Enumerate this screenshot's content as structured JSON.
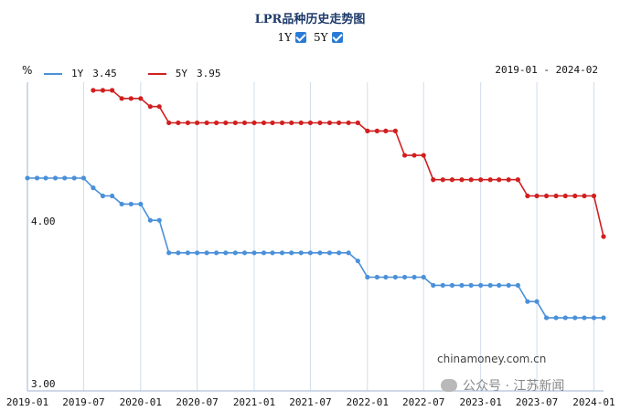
{
  "header": {
    "title": "LPR品种历史走势图",
    "toggles": [
      {
        "label": "1Y",
        "checked": true
      },
      {
        "label": "5Y",
        "checked": true
      }
    ]
  },
  "legend": {
    "unit": "%",
    "range_text": "2019-01 - 2024-02",
    "items": [
      {
        "name": "1Y",
        "value": "3.45",
        "color": "#4a90d9"
      },
      {
        "name": "5Y",
        "value": "3.95",
        "color": "#d11f1f"
      }
    ]
  },
  "watermarks": {
    "site": "chinamoney.com.cn",
    "account": "公众号 · 江苏新闻"
  },
  "chart_data": {
    "type": "line",
    "xlabel": "",
    "ylabel": "%",
    "x_ticks": [
      "2019-01",
      "2019-07",
      "2020-01",
      "2020-07",
      "2021-01",
      "2021-07",
      "2022-01",
      "2022-07",
      "2023-01",
      "2023-07",
      "2024-01"
    ],
    "y_ticks": [
      "4.00",
      "3.00"
    ],
    "ylim": [
      3.0,
      4.9
    ],
    "series": [
      {
        "name": "1Y",
        "color": "#4a90d9",
        "values": [
          [
            "2019-01",
            4.31
          ],
          [
            "2019-02",
            4.31
          ],
          [
            "2019-03",
            4.31
          ],
          [
            "2019-04",
            4.31
          ],
          [
            "2019-05",
            4.31
          ],
          [
            "2019-06",
            4.31
          ],
          [
            "2019-07",
            4.31
          ],
          [
            "2019-08",
            4.25
          ],
          [
            "2019-09",
            4.2
          ],
          [
            "2019-10",
            4.2
          ],
          [
            "2019-11",
            4.15
          ],
          [
            "2019-12",
            4.15
          ],
          [
            "2020-01",
            4.15
          ],
          [
            "2020-02",
            4.05
          ],
          [
            "2020-03",
            4.05
          ],
          [
            "2020-04",
            3.85
          ],
          [
            "2020-05",
            3.85
          ],
          [
            "2020-06",
            3.85
          ],
          [
            "2020-07",
            3.85
          ],
          [
            "2020-08",
            3.85
          ],
          [
            "2020-09",
            3.85
          ],
          [
            "2020-10",
            3.85
          ],
          [
            "2020-11",
            3.85
          ],
          [
            "2020-12",
            3.85
          ],
          [
            "2021-01",
            3.85
          ],
          [
            "2021-02",
            3.85
          ],
          [
            "2021-03",
            3.85
          ],
          [
            "2021-04",
            3.85
          ],
          [
            "2021-05",
            3.85
          ],
          [
            "2021-06",
            3.85
          ],
          [
            "2021-07",
            3.85
          ],
          [
            "2021-08",
            3.85
          ],
          [
            "2021-09",
            3.85
          ],
          [
            "2021-10",
            3.85
          ],
          [
            "2021-11",
            3.85
          ],
          [
            "2021-12",
            3.8
          ],
          [
            "2022-01",
            3.7
          ],
          [
            "2022-02",
            3.7
          ],
          [
            "2022-03",
            3.7
          ],
          [
            "2022-04",
            3.7
          ],
          [
            "2022-05",
            3.7
          ],
          [
            "2022-06",
            3.7
          ],
          [
            "2022-07",
            3.7
          ],
          [
            "2022-08",
            3.65
          ],
          [
            "2022-09",
            3.65
          ],
          [
            "2022-10",
            3.65
          ],
          [
            "2022-11",
            3.65
          ],
          [
            "2022-12",
            3.65
          ],
          [
            "2023-01",
            3.65
          ],
          [
            "2023-02",
            3.65
          ],
          [
            "2023-03",
            3.65
          ],
          [
            "2023-04",
            3.65
          ],
          [
            "2023-05",
            3.65
          ],
          [
            "2023-06",
            3.55
          ],
          [
            "2023-07",
            3.55
          ],
          [
            "2023-08",
            3.45
          ],
          [
            "2023-09",
            3.45
          ],
          [
            "2023-10",
            3.45
          ],
          [
            "2023-11",
            3.45
          ],
          [
            "2023-12",
            3.45
          ],
          [
            "2024-01",
            3.45
          ],
          [
            "2024-02",
            3.45
          ]
        ]
      },
      {
        "name": "5Y",
        "color": "#d11f1f",
        "values": [
          [
            "2019-08",
            4.85
          ],
          [
            "2019-09",
            4.85
          ],
          [
            "2019-10",
            4.85
          ],
          [
            "2019-11",
            4.8
          ],
          [
            "2019-12",
            4.8
          ],
          [
            "2020-01",
            4.8
          ],
          [
            "2020-02",
            4.75
          ],
          [
            "2020-03",
            4.75
          ],
          [
            "2020-04",
            4.65
          ],
          [
            "2020-05",
            4.65
          ],
          [
            "2020-06",
            4.65
          ],
          [
            "2020-07",
            4.65
          ],
          [
            "2020-08",
            4.65
          ],
          [
            "2020-09",
            4.65
          ],
          [
            "2020-10",
            4.65
          ],
          [
            "2020-11",
            4.65
          ],
          [
            "2020-12",
            4.65
          ],
          [
            "2021-01",
            4.65
          ],
          [
            "2021-02",
            4.65
          ],
          [
            "2021-03",
            4.65
          ],
          [
            "2021-04",
            4.65
          ],
          [
            "2021-05",
            4.65
          ],
          [
            "2021-06",
            4.65
          ],
          [
            "2021-07",
            4.65
          ],
          [
            "2021-08",
            4.65
          ],
          [
            "2021-09",
            4.65
          ],
          [
            "2021-10",
            4.65
          ],
          [
            "2021-11",
            4.65
          ],
          [
            "2021-12",
            4.65
          ],
          [
            "2022-01",
            4.6
          ],
          [
            "2022-02",
            4.6
          ],
          [
            "2022-03",
            4.6
          ],
          [
            "2022-04",
            4.6
          ],
          [
            "2022-05",
            4.45
          ],
          [
            "2022-06",
            4.45
          ],
          [
            "2022-07",
            4.45
          ],
          [
            "2022-08",
            4.3
          ],
          [
            "2022-09",
            4.3
          ],
          [
            "2022-10",
            4.3
          ],
          [
            "2022-11",
            4.3
          ],
          [
            "2022-12",
            4.3
          ],
          [
            "2023-01",
            4.3
          ],
          [
            "2023-02",
            4.3
          ],
          [
            "2023-03",
            4.3
          ],
          [
            "2023-04",
            4.3
          ],
          [
            "2023-05",
            4.3
          ],
          [
            "2023-06",
            4.2
          ],
          [
            "2023-07",
            4.2
          ],
          [
            "2023-08",
            4.2
          ],
          [
            "2023-09",
            4.2
          ],
          [
            "2023-10",
            4.2
          ],
          [
            "2023-11",
            4.2
          ],
          [
            "2023-12",
            4.2
          ],
          [
            "2024-01",
            4.2
          ],
          [
            "2024-02",
            3.95
          ]
        ]
      }
    ],
    "grid": {
      "vertical": true,
      "horizontal": false
    }
  }
}
